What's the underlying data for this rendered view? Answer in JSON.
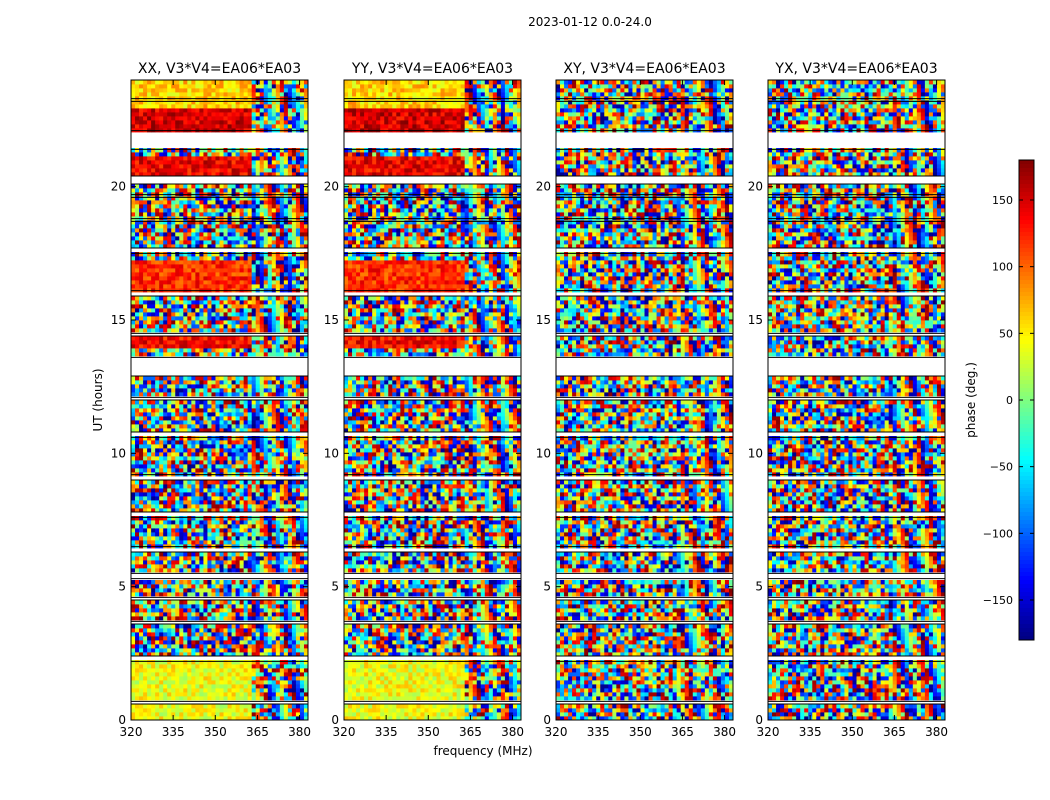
{
  "chart_data": {
    "type": "heatmap",
    "title": "2023-01-12 0.0-24.0",
    "xlabel": "frequency (MHz)",
    "ylabel": "UT (hours)",
    "xlim": [
      320,
      383
    ],
    "ylim": [
      0,
      24
    ],
    "xticks": [
      320,
      335,
      350,
      365,
      380
    ],
    "yticks": [
      0,
      5,
      10,
      15,
      20
    ],
    "panels": [
      {
        "title": "XX, V3*V4=EA06*EA03",
        "polarization": "XX"
      },
      {
        "title": "YY, V3*V4=EA06*EA03",
        "polarization": "YY"
      },
      {
        "title": "XY, V3*V4=EA06*EA03",
        "polarization": "XY"
      },
      {
        "title": "YX, V3*V4=EA06*EA03",
        "polarization": "YX"
      }
    ],
    "colorbar": {
      "label": "phase (deg.)",
      "range": [
        -180,
        180
      ],
      "ticks": [
        150,
        100,
        50,
        0,
        -50,
        -100,
        -150
      ],
      "colormap": "jet"
    },
    "flagged_intervals_ut": [
      [
        0.6,
        0.7
      ],
      [
        2.2,
        2.4
      ],
      [
        3.6,
        3.7
      ],
      [
        4.5,
        4.6
      ],
      [
        5.3,
        5.5
      ],
      [
        6.3,
        6.5
      ],
      [
        7.6,
        7.8
      ],
      [
        9.0,
        9.2
      ],
      [
        10.6,
        10.8
      ],
      [
        12.0,
        12.1
      ],
      [
        12.9,
        13.6
      ],
      [
        14.4,
        14.5
      ],
      [
        15.9,
        16.1
      ],
      [
        17.5,
        17.7
      ],
      [
        18.7,
        18.8
      ],
      [
        19.6,
        19.7
      ],
      [
        20.1,
        20.4
      ],
      [
        21.4,
        22.1
      ],
      [
        23.2,
        23.3
      ]
    ],
    "coherent_bands_ut": [
      {
        "range": [
          0.0,
          2.2
        ],
        "panels": [
          "XX",
          "YY"
        ],
        "mean_phase_deg": 40
      },
      {
        "range": [
          14.0,
          14.4
        ],
        "panels": [
          "XX",
          "YY"
        ],
        "mean_phase_deg": 135
      },
      {
        "range": [
          15.9,
          17.3
        ],
        "panels": [
          "XX",
          "YY"
        ],
        "mean_phase_deg": 120
      },
      {
        "range": [
          20.4,
          21.1
        ],
        "panels": [
          "XX",
          "YY"
        ],
        "mean_phase_deg": 140
      },
      {
        "range": [
          22.1,
          23.0
        ],
        "panels": [
          "XX",
          "YY"
        ],
        "mean_phase_deg": 150
      },
      {
        "range": [
          23.0,
          24.0
        ],
        "panels": [
          "XX",
          "YY"
        ],
        "mean_phase_deg": 60
      }
    ]
  }
}
